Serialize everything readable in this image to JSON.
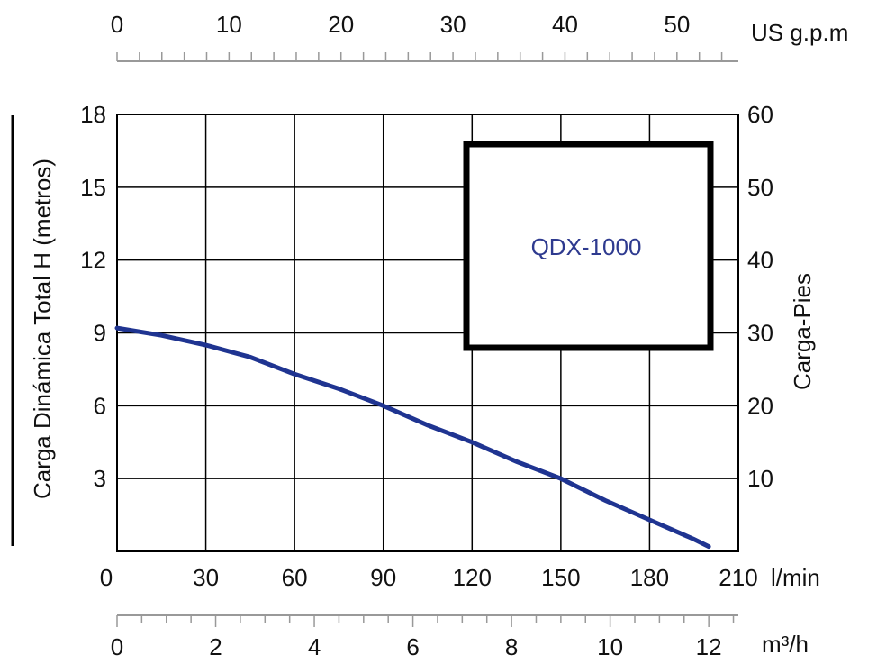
{
  "chart_data": {
    "type": "line",
    "title": "",
    "model_label": "QDX-1000",
    "ylabel_left": "Carga Dinámica Total H (metros)",
    "ylabel_right": "Carga-Pies",
    "x_units": {
      "lmin": "l/min",
      "m3h": "m³/h",
      "gpm": "US g.p.m"
    },
    "xlim": [
      0,
      210
    ],
    "ylim": [
      0,
      18
    ],
    "x_ticks_lmin": [
      "0",
      "30",
      "60",
      "90",
      "120",
      "150",
      "180",
      "210"
    ],
    "y_ticks_left": [
      "3",
      "6",
      "9",
      "12",
      "15",
      "18"
    ],
    "y_ticks_right": [
      "10",
      "20",
      "30",
      "40",
      "50",
      "60"
    ],
    "x_ticks_m3h": [
      "0",
      "2",
      "4",
      "6",
      "8",
      "10",
      "12"
    ],
    "x_ticks_gpm": [
      "0",
      "10",
      "20",
      "30",
      "40",
      "50"
    ],
    "grid": true,
    "curve_color": "#1f3491",
    "series": [
      {
        "x": [
          0,
          15,
          30,
          45,
          60,
          75,
          90,
          105,
          120,
          135,
          150,
          165,
          180,
          195,
          200
        ],
        "y": [
          9.2,
          8.9,
          8.5,
          8.0,
          7.3,
          6.7,
          6.0,
          5.2,
          4.5,
          3.7,
          3.0,
          2.1,
          1.3,
          0.5,
          0.2
        ]
      }
    ]
  }
}
